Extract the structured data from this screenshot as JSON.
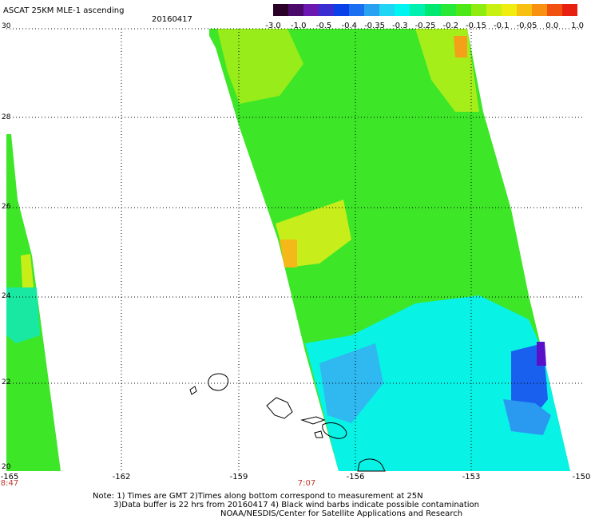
{
  "header": {
    "title": "ASCAT 25KM MLE-1 ascending",
    "date": "20160417"
  },
  "colorbar": {
    "labels": [
      "-3.0",
      "-1.0",
      "-0.5",
      "-0.4",
      "-0.35",
      "-0.3",
      "-0.25",
      "-0.2",
      "-0.15",
      "-0.1",
      "-0.05",
      "0.0",
      "1.0"
    ],
    "colors": [
      "#2a0028",
      "#4a0a6a",
      "#6a18b0",
      "#3a2ed0",
      "#0a40e8",
      "#1a6ef0",
      "#2aa0f0",
      "#20d4f4",
      "#00f4f0",
      "#00f0b0",
      "#00e870",
      "#28e838",
      "#4ee818",
      "#8eec10",
      "#c8f010",
      "#f0ee10",
      "#f8c010",
      "#f89010",
      "#f05010",
      "#e82010"
    ]
  },
  "axes": {
    "lat_labels": [
      "30",
      "28",
      "26",
      "24",
      "22",
      "20"
    ],
    "lon_labels": [
      "-165",
      "-162",
      "-159",
      "-156",
      "-153",
      "-150"
    ]
  },
  "pass_times": [
    "8:47",
    "7:07"
  ],
  "notes": {
    "line1": "Note: 1) Times are GMT 2)Times along bottom correspond to measurement at 25N",
    "line2": "3)Data buffer is 22 hrs from 20160417 4) Black wind barbs indicate possible contamination",
    "line3": "NOAA/NESDIS/Center for Satellite Applications and Research"
  }
}
